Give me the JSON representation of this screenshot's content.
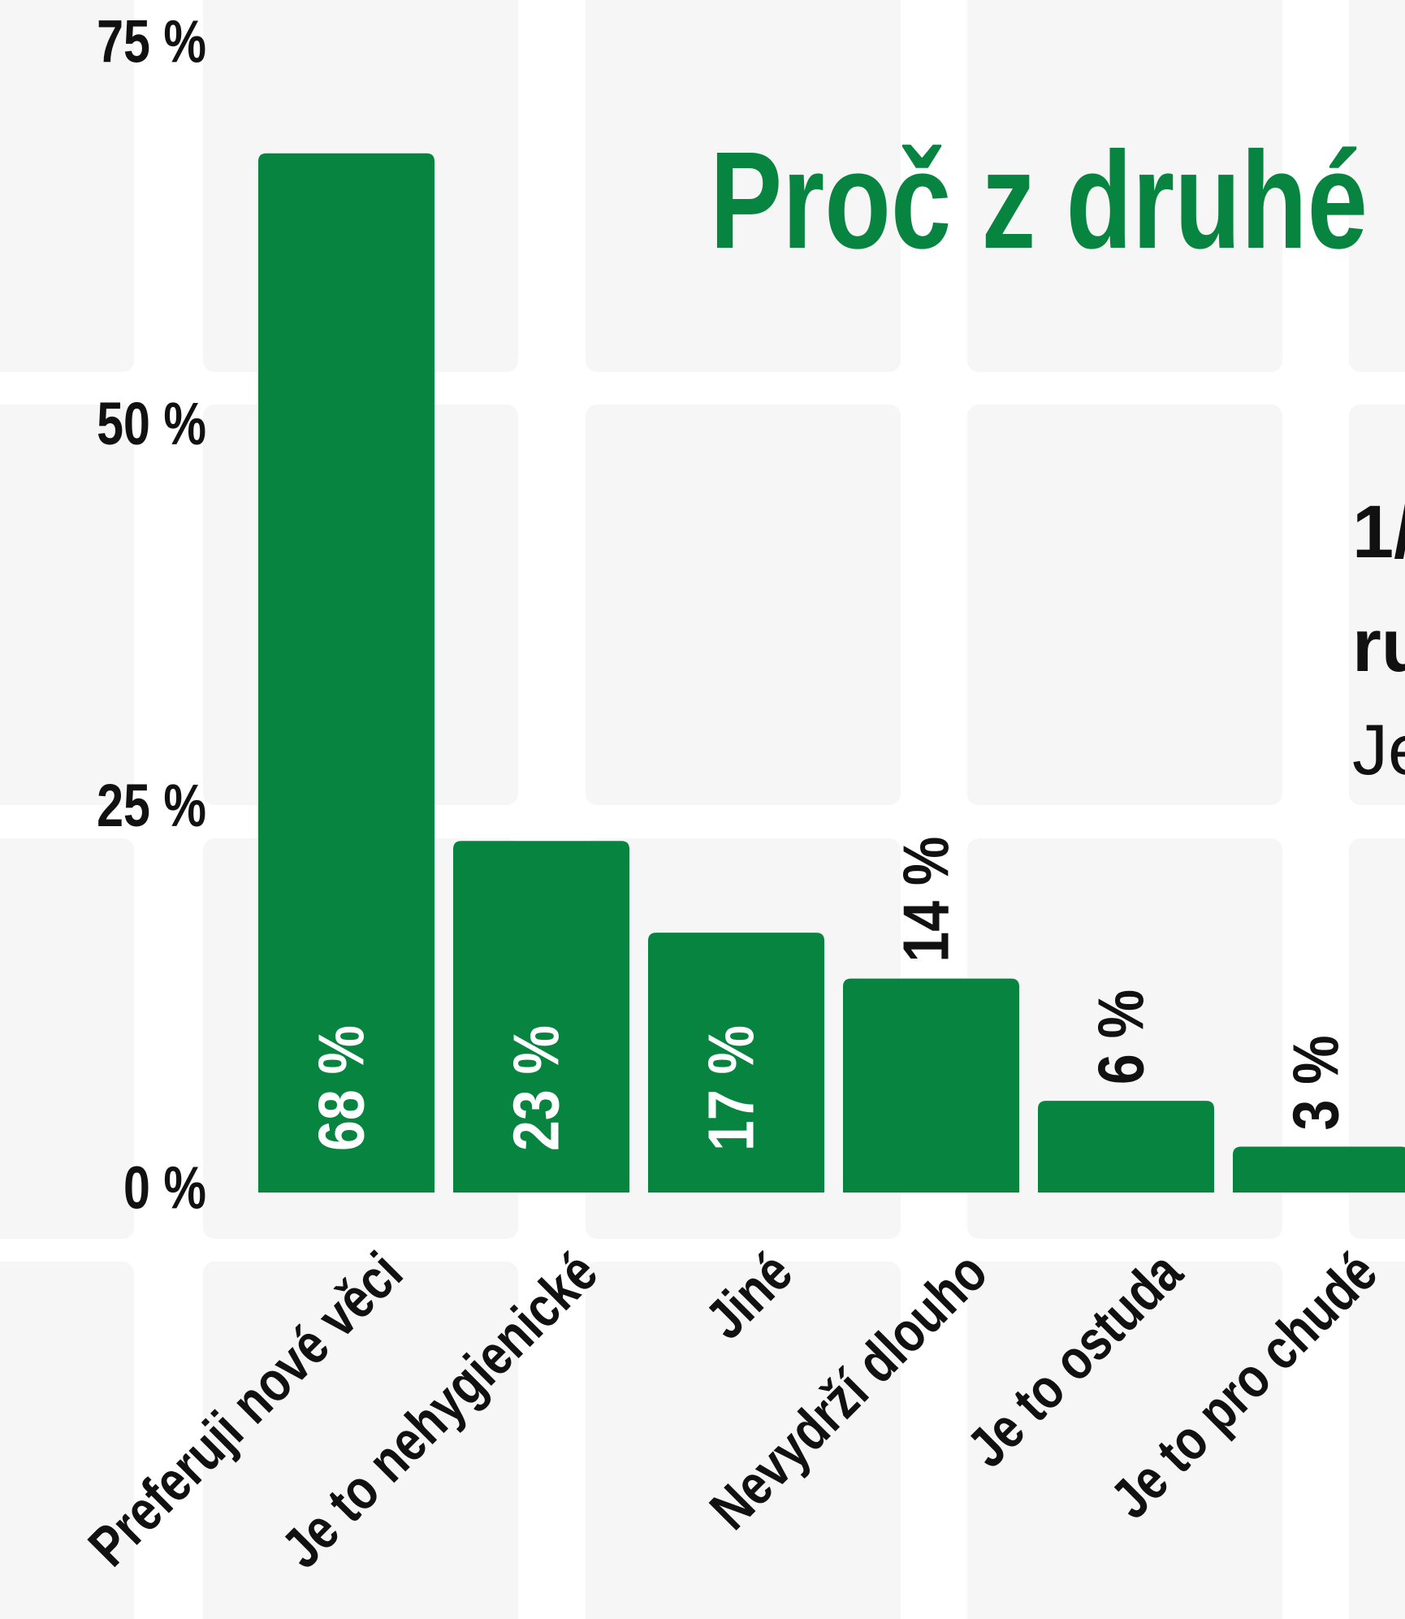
{
  "chart_data": {
    "type": "bar",
    "title": "Proč z druhé",
    "annotations": [
      "1/",
      "ru",
      "Je"
    ],
    "categories": [
      "Preferuji nové věci",
      "Je to nehygienické",
      "Jiné",
      "Nevydrží dlouho",
      "Je to ostuda",
      "Je to pro chudé"
    ],
    "values": [
      68,
      23,
      17,
      14,
      6,
      3
    ],
    "value_labels": [
      "68 %",
      "23 %",
      "17 %",
      "14 %",
      "6 %",
      "3 %"
    ],
    "color": "#07843f",
    "ylim": [
      0,
      75
    ],
    "yticks": [
      {
        "value": 0,
        "label": "0 %"
      },
      {
        "value": 25,
        "label": "25 %"
      },
      {
        "value": 50,
        "label": "50 %"
      },
      {
        "value": 75,
        "label": "75 %"
      }
    ]
  }
}
